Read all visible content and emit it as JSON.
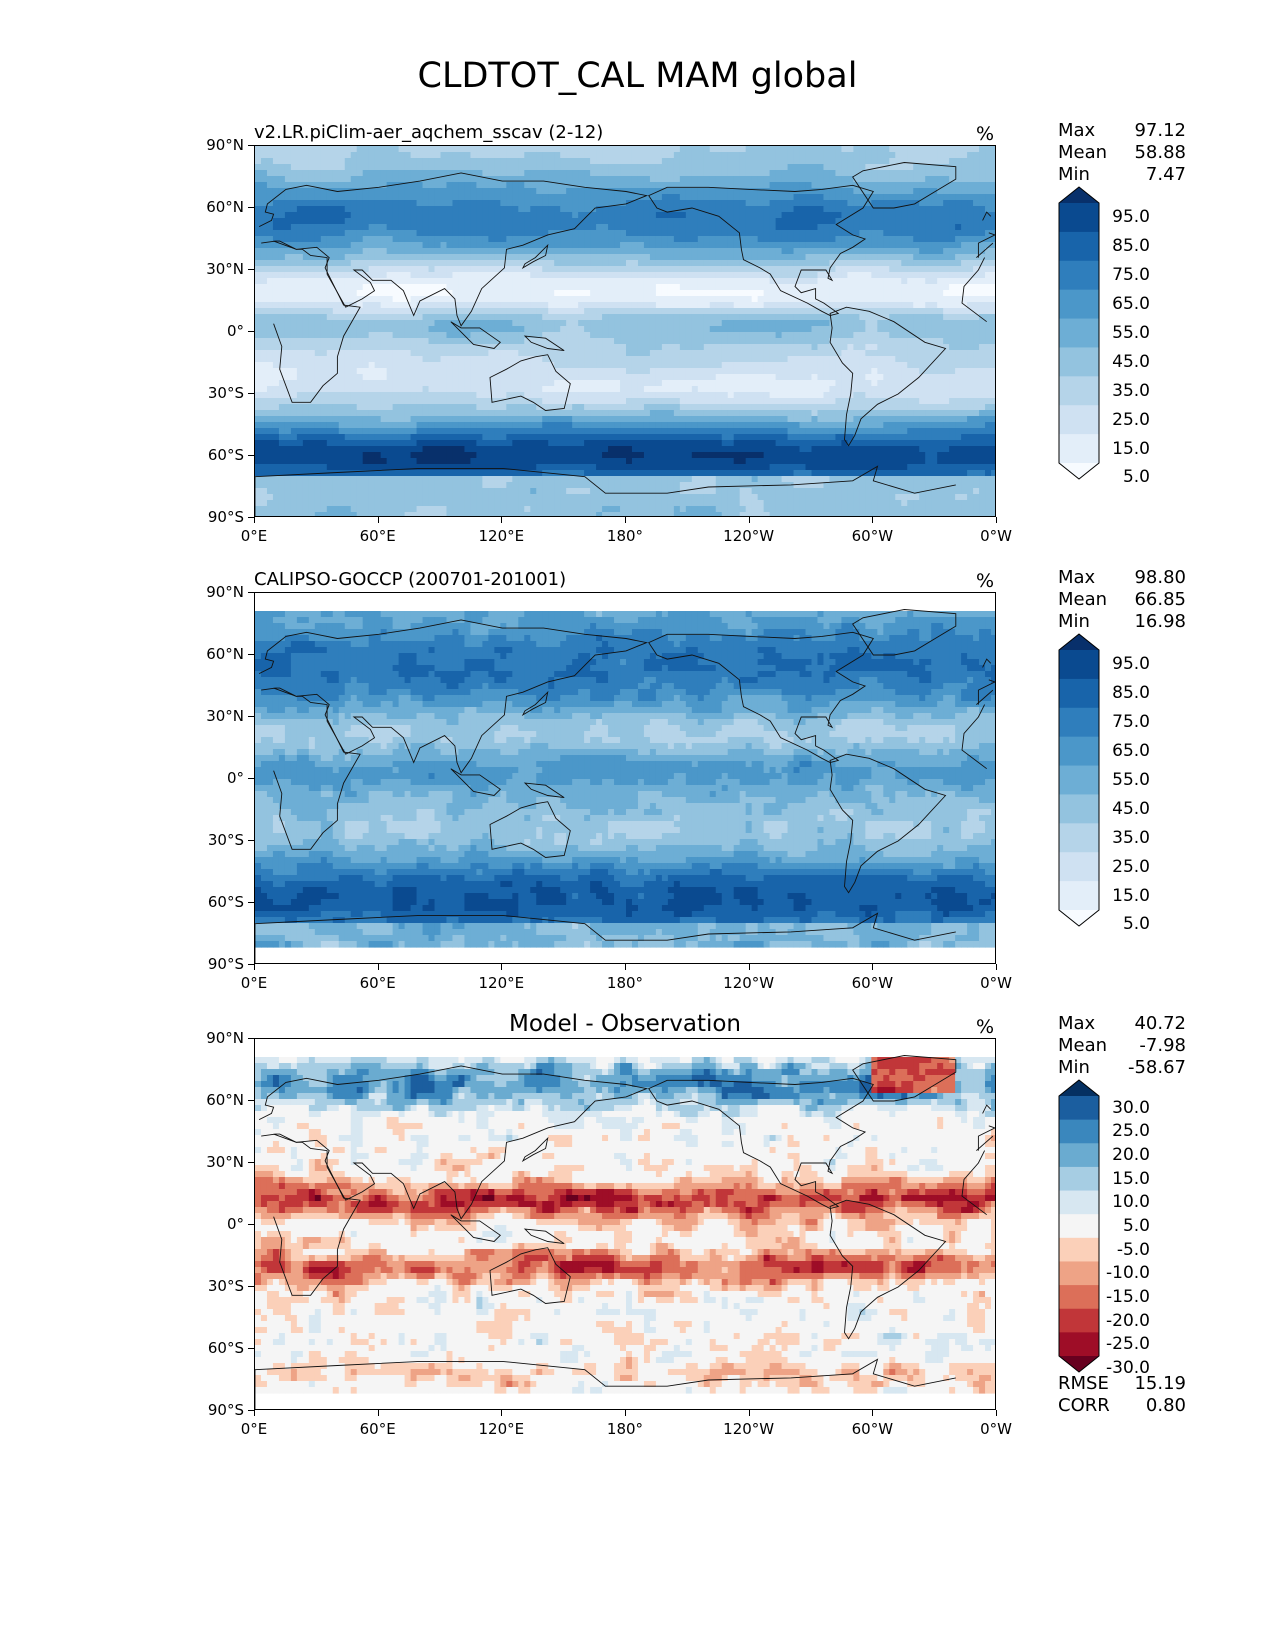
{
  "figure": {
    "title": "CLDTOT_CAL MAM global",
    "lat_labels": [
      "90°N",
      "60°N",
      "30°N",
      "0°",
      "30°S",
      "60°S",
      "90°S"
    ],
    "lon_labels": [
      "0°E",
      "60°E",
      "120°E",
      "180°",
      "120°W",
      "60°W",
      "0°W"
    ]
  },
  "panels": [
    {
      "id": "model",
      "title": "v2.LR.piClim-aer_aqchem_sscav (2-12)",
      "units": "%",
      "stats": [
        {
          "label": "Max",
          "value": "97.12"
        },
        {
          "label": "Mean",
          "value": "58.88"
        },
        {
          "label": "Min",
          "value": "7.47"
        }
      ],
      "colorbar": {
        "ticks": [
          "95.0",
          "85.0",
          "75.0",
          "65.0",
          "55.0",
          "45.0",
          "35.0",
          "25.0",
          "15.0",
          "5.0"
        ],
        "colors": [
          "#f7fbff",
          "#e3eef9",
          "#cfe1f2",
          "#b5d4e9",
          "#93c3df",
          "#6daed5",
          "#4b97c9",
          "#2f7ebc",
          "#1864aa",
          "#0a4a90",
          "#08306b"
        ]
      }
    },
    {
      "id": "obs",
      "title": "CALIPSO-GOCCP (200701-201001)",
      "units": "%",
      "stats": [
        {
          "label": "Max",
          "value": "98.80"
        },
        {
          "label": "Mean",
          "value": "66.85"
        },
        {
          "label": "Min",
          "value": "16.98"
        }
      ],
      "colorbar": {
        "ticks": [
          "95.0",
          "85.0",
          "75.0",
          "65.0",
          "55.0",
          "45.0",
          "35.0",
          "25.0",
          "15.0",
          "5.0"
        ],
        "colors": [
          "#f7fbff",
          "#e3eef9",
          "#cfe1f2",
          "#b5d4e9",
          "#93c3df",
          "#6daed5",
          "#4b97c9",
          "#2f7ebc",
          "#1864aa",
          "#0a4a90",
          "#08306b"
        ]
      }
    },
    {
      "id": "diff",
      "title": "Model - Observation",
      "units": "%",
      "stats": [
        {
          "label": "Max",
          "value": "40.72"
        },
        {
          "label": "Mean",
          "value": "-7.98"
        },
        {
          "label": "Min",
          "value": "-58.67"
        }
      ],
      "extra_stats": [
        {
          "label": "RMSE",
          "value": "15.19"
        },
        {
          "label": "CORR",
          "value": "0.80"
        }
      ],
      "colorbar": {
        "ticks": [
          "30.0",
          "25.0",
          "20.0",
          "15.0",
          "10.0",
          "5.0",
          "-5.0",
          "-10.0",
          "-15.0",
          "-20.0",
          "-25.0",
          "-30.0"
        ],
        "colors": [
          "#67001f",
          "#9e0d27",
          "#c13639",
          "#dc6f59",
          "#eea386",
          "#fbd0b9",
          "#f5f5f5",
          "#d7e7f1",
          "#a6cde3",
          "#6aabd0",
          "#3a87bd",
          "#1b5e9f",
          "#053061"
        ]
      }
    }
  ]
}
